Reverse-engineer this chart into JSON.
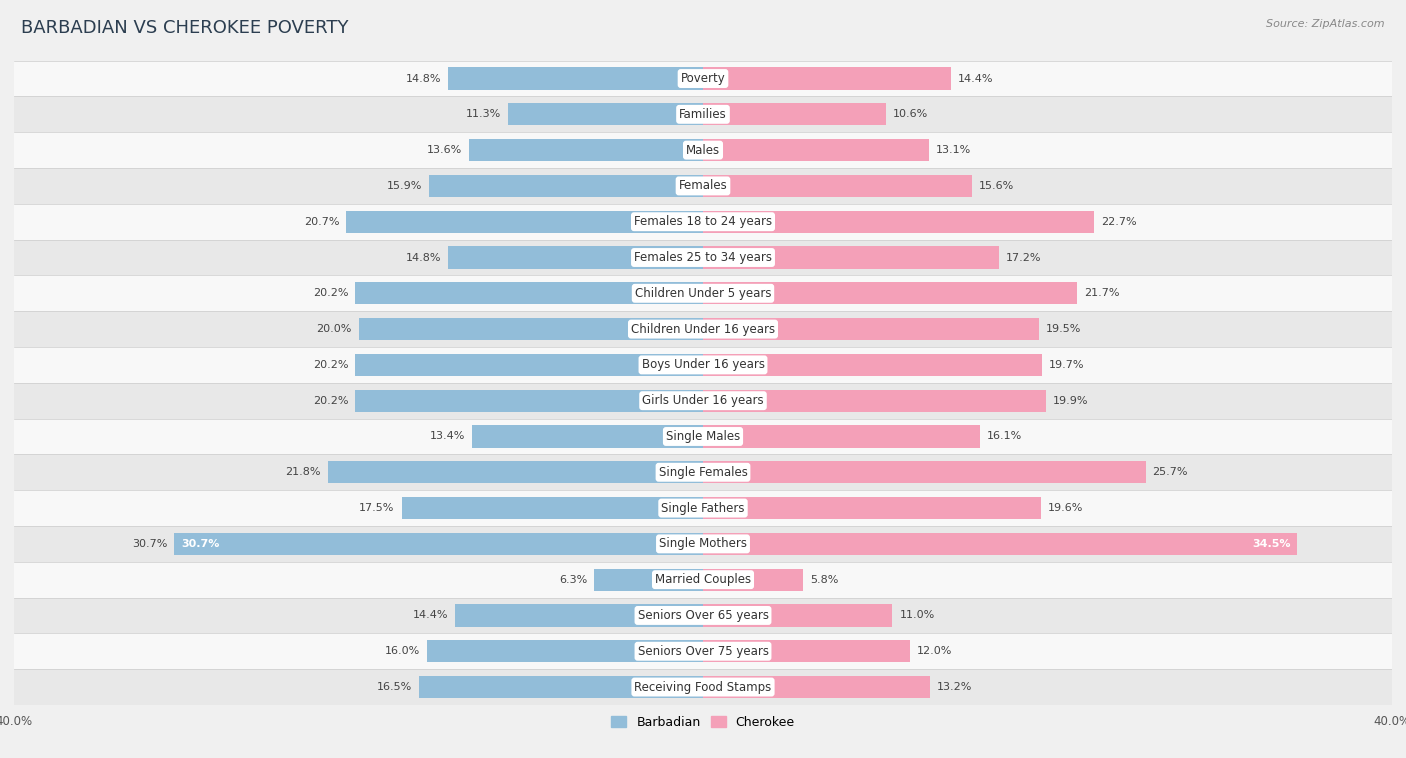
{
  "title": "BARBADIAN VS CHEROKEE POVERTY",
  "source": "Source: ZipAtlas.com",
  "categories": [
    "Poverty",
    "Families",
    "Males",
    "Females",
    "Females 18 to 24 years",
    "Females 25 to 34 years",
    "Children Under 5 years",
    "Children Under 16 years",
    "Boys Under 16 years",
    "Girls Under 16 years",
    "Single Males",
    "Single Females",
    "Single Fathers",
    "Single Mothers",
    "Married Couples",
    "Seniors Over 65 years",
    "Seniors Over 75 years",
    "Receiving Food Stamps"
  ],
  "barbadian": [
    14.8,
    11.3,
    13.6,
    15.9,
    20.7,
    14.8,
    20.2,
    20.0,
    20.2,
    20.2,
    13.4,
    21.8,
    17.5,
    30.7,
    6.3,
    14.4,
    16.0,
    16.5
  ],
  "cherokee": [
    14.4,
    10.6,
    13.1,
    15.6,
    22.7,
    17.2,
    21.7,
    19.5,
    19.7,
    19.9,
    16.1,
    25.7,
    19.6,
    34.5,
    5.8,
    11.0,
    12.0,
    13.2
  ],
  "barbadian_color": "#92bdd9",
  "cherokee_color": "#f4a0b8",
  "background_color": "#f0f0f0",
  "row_color_light": "#f8f8f8",
  "row_color_dark": "#e8e8e8",
  "xlim": 40.0,
  "bar_height": 0.62,
  "title_fontsize": 13,
  "label_fontsize": 8.5,
  "value_fontsize": 8.0,
  "legend_fontsize": 9,
  "source_fontsize": 8
}
